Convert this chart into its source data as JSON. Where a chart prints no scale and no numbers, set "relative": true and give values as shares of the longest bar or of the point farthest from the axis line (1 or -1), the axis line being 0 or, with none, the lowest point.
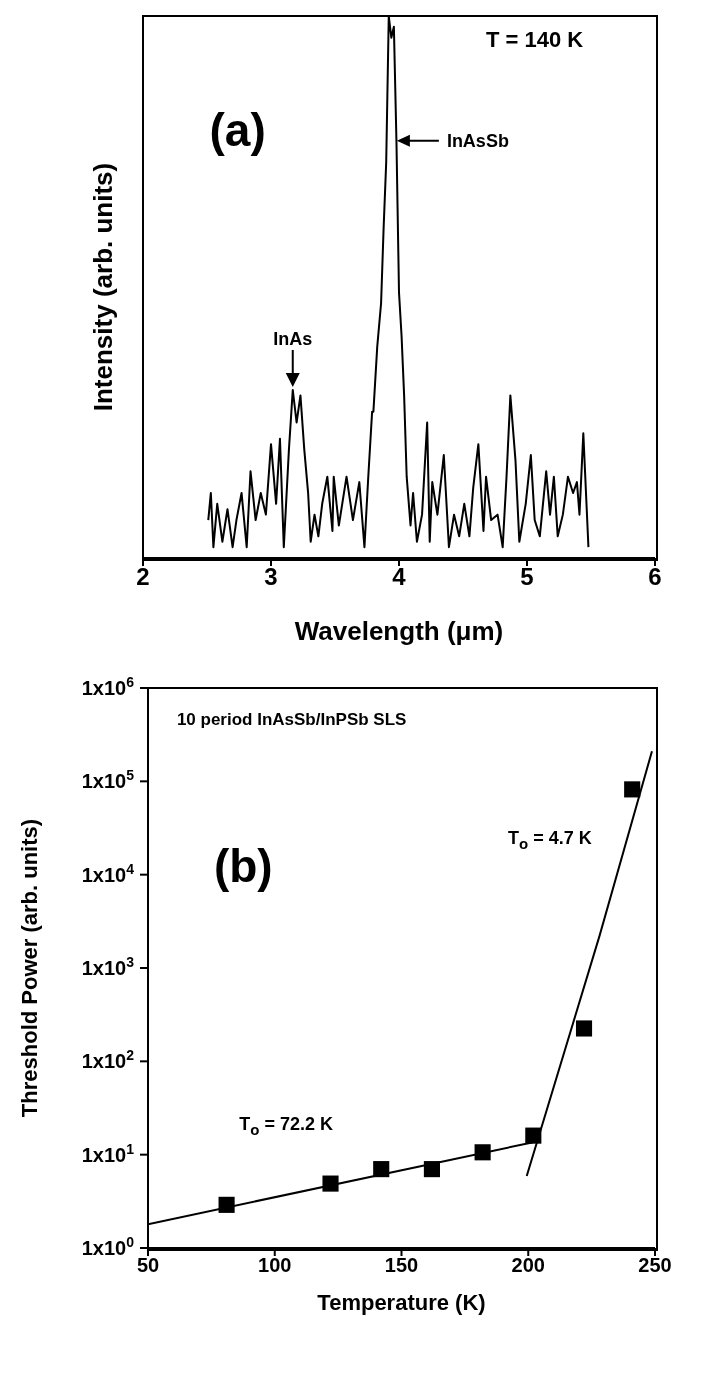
{
  "chart_data": [
    {
      "type": "line",
      "relative": true,
      "xlabel": "Wavelength (μm)",
      "ylabel": "Intensity (arb. units)",
      "xlim": [
        2,
        6
      ],
      "xticks": [
        2,
        3,
        4,
        5,
        6
      ],
      "annotations": [
        "(a)",
        "T = 140 K",
        {
          "text": "InAsSb",
          "x": 3.96,
          "y": 0.77
        },
        {
          "text": "InAs",
          "x": 3.17,
          "y": 0.31
        }
      ],
      "series": [
        {
          "color": "#000000",
          "x": [
            2.51,
            2.53,
            2.55,
            2.58,
            2.62,
            2.66,
            2.7,
            2.73,
            2.77,
            2.81,
            2.84,
            2.88,
            2.92,
            2.96,
            3.0,
            3.04,
            3.07,
            3.1,
            3.14,
            3.17,
            3.2,
            3.23,
            3.26,
            3.29,
            3.31,
            3.34,
            3.37,
            3.4,
            3.44,
            3.48,
            3.49,
            3.53,
            3.59,
            3.64,
            3.69,
            3.73,
            3.76,
            3.79,
            3.8,
            3.83,
            3.86,
            3.88,
            3.9,
            3.92,
            3.94,
            3.96,
            3.98,
            4.0,
            4.02,
            4.04,
            4.06,
            4.09,
            4.11,
            4.14,
            4.18,
            4.22,
            4.24,
            4.26,
            4.3,
            4.35,
            4.39,
            4.43,
            4.47,
            4.51,
            4.55,
            4.58,
            4.62,
            4.66,
            4.68,
            4.72,
            4.77,
            4.81,
            4.84,
            4.87,
            4.91,
            4.94,
            4.99,
            5.03,
            5.06,
            5.1,
            5.15,
            5.18,
            5.21,
            5.24,
            5.28,
            5.32,
            5.36,
            5.39,
            5.41,
            5.44,
            5.48
          ],
          "values": [
            0.07,
            0.12,
            0.02,
            0.1,
            0.03,
            0.09,
            0.02,
            0.07,
            0.12,
            0.02,
            0.16,
            0.07,
            0.12,
            0.08,
            0.21,
            0.1,
            0.22,
            0.02,
            0.2,
            0.31,
            0.25,
            0.3,
            0.2,
            0.12,
            0.03,
            0.08,
            0.04,
            0.1,
            0.15,
            0.05,
            0.15,
            0.06,
            0.15,
            0.07,
            0.14,
            0.02,
            0.15,
            0.27,
            0.27,
            0.39,
            0.47,
            0.61,
            0.73,
            1.0,
            0.96,
            0.98,
            0.77,
            0.49,
            0.41,
            0.3,
            0.15,
            0.06,
            0.12,
            0.03,
            0.08,
            0.25,
            0.03,
            0.14,
            0.08,
            0.19,
            0.02,
            0.08,
            0.04,
            0.1,
            0.04,
            0.13,
            0.21,
            0.05,
            0.15,
            0.07,
            0.08,
            0.02,
            0.15,
            0.3,
            0.18,
            0.03,
            0.1,
            0.19,
            0.07,
            0.04,
            0.16,
            0.08,
            0.15,
            0.04,
            0.08,
            0.15,
            0.12,
            0.14,
            0.08,
            0.23,
            0.02
          ]
        }
      ]
    },
    {
      "type": "scatter",
      "xlabel": "Temperature (K)",
      "ylabel": "Threshold Power (arb. units)",
      "xlim": [
        50,
        250
      ],
      "xticks": [
        50,
        100,
        150,
        200,
        250
      ],
      "log": true,
      "ylim": [
        1,
        1000000
      ],
      "yticks": [
        {
          "value": 1,
          "label": "1x10$^{0}$"
        },
        {
          "value": 10,
          "label": "1x10$^{1}$"
        },
        {
          "value": 100,
          "label": "1x10$^{2}$"
        },
        {
          "value": 1000,
          "label": "1x10$^{3}$"
        },
        {
          "value": 10000,
          "label": "1x10$^{4}$"
        },
        {
          "value": 100000,
          "label": "1x10$^{5}$"
        },
        {
          "value": 1000000,
          "label": "1x10$^{6}$"
        }
      ],
      "annotations": [
        "10 period InAsSb/InPSb SLS",
        "(b)",
        "T$_{o}$ = 72.2 K",
        "T$_{o}$ = 4.7 K"
      ],
      "series": [
        {
          "marker": "square",
          "color": "#000000",
          "x": [
            81,
            122,
            142,
            162,
            182,
            202,
            222,
            241
          ],
          "values": [
            2.9,
            4.9,
            7.0,
            7.0,
            10.6,
            16,
            225,
            82000
          ]
        },
        {
          "type": "line",
          "marker": "none",
          "color": "#000000",
          "x": [
            50,
            202
          ],
          "values": [
            1.8,
            13.6
          ]
        },
        {
          "type": "line",
          "marker": "none",
          "color": "#000000",
          "x": [
            199.4,
            228.2,
            248.8
          ],
          "values": [
            5.9,
            2250,
            210000
          ]
        }
      ]
    }
  ]
}
